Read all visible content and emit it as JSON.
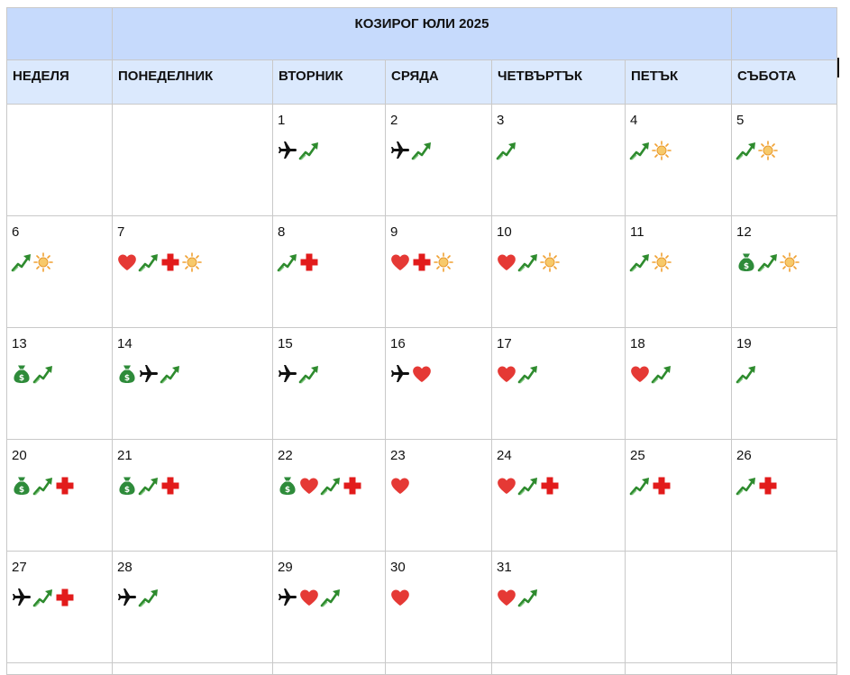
{
  "title": "КОЗИРОГ ЮЛИ 2025",
  "days_of_week": [
    "НЕДЕЛЯ",
    "ПОНЕДЕЛНИК",
    "ВТОРНИК",
    "СРЯДА",
    "ЧЕТВЪРТЪК",
    "ПЕТЪК",
    "СЪБОТА"
  ],
  "colors": {
    "title_bg": "#c6dafc",
    "header_bg": "#dbe9fd",
    "grid": "#c9c9c9"
  },
  "weeks": [
    [
      {
        "day": "",
        "icons": []
      },
      {
        "day": "",
        "icons": []
      },
      {
        "day": "1",
        "icons": [
          "airplane-icon",
          "trend-up-icon"
        ]
      },
      {
        "day": "2",
        "icons": [
          "airplane-icon",
          "trend-up-icon"
        ]
      },
      {
        "day": "3",
        "icons": [
          "trend-up-icon"
        ]
      },
      {
        "day": "4",
        "icons": [
          "trend-up-icon",
          "sun-icon"
        ]
      },
      {
        "day": "5",
        "icons": [
          "trend-up-icon",
          "sun-icon"
        ]
      }
    ],
    [
      {
        "day": "6",
        "icons": [
          "trend-up-icon",
          "sun-icon"
        ]
      },
      {
        "day": "7",
        "icons": [
          "heart-icon",
          "trend-up-icon",
          "health-cross-icon",
          "sun-icon"
        ]
      },
      {
        "day": "8",
        "icons": [
          "trend-up-icon",
          "health-cross-icon"
        ]
      },
      {
        "day": "9",
        "icons": [
          "heart-icon",
          "health-cross-icon",
          "sun-icon"
        ]
      },
      {
        "day": "10",
        "icons": [
          "heart-icon",
          "trend-up-icon",
          "sun-icon"
        ]
      },
      {
        "day": "11",
        "icons": [
          "trend-up-icon",
          "sun-icon"
        ]
      },
      {
        "day": "12",
        "icons": [
          "money-bag-icon",
          "trend-up-icon",
          "sun-icon"
        ]
      }
    ],
    [
      {
        "day": "13",
        "icons": [
          "money-bag-icon",
          "trend-up-icon"
        ]
      },
      {
        "day": "14",
        "icons": [
          "money-bag-icon",
          "airplane-icon",
          "trend-up-icon"
        ]
      },
      {
        "day": "15",
        "icons": [
          "airplane-icon",
          "trend-up-icon"
        ]
      },
      {
        "day": "16",
        "icons": [
          "airplane-icon",
          "heart-icon"
        ]
      },
      {
        "day": "17",
        "icons": [
          "heart-icon",
          "trend-up-icon"
        ]
      },
      {
        "day": "18",
        "icons": [
          "heart-icon",
          "trend-up-icon"
        ]
      },
      {
        "day": "19",
        "icons": [
          "trend-up-icon"
        ]
      }
    ],
    [
      {
        "day": "20",
        "icons": [
          "money-bag-icon",
          "trend-up-icon",
          "health-cross-icon"
        ]
      },
      {
        "day": "21",
        "icons": [
          "money-bag-icon",
          "trend-up-icon",
          "health-cross-icon"
        ]
      },
      {
        "day": "22",
        "icons": [
          "money-bag-icon",
          "heart-icon",
          "trend-up-icon",
          "health-cross-icon"
        ]
      },
      {
        "day": "23",
        "icons": [
          "heart-icon"
        ]
      },
      {
        "day": "24",
        "icons": [
          "heart-icon",
          "trend-up-icon",
          "health-cross-icon"
        ]
      },
      {
        "day": "25",
        "icons": [
          "trend-up-icon",
          "health-cross-icon"
        ]
      },
      {
        "day": "26",
        "icons": [
          "trend-up-icon",
          "health-cross-icon"
        ]
      }
    ],
    [
      {
        "day": "27",
        "icons": [
          "airplane-icon",
          "trend-up-icon",
          "health-cross-icon"
        ]
      },
      {
        "day": "28",
        "icons": [
          "airplane-icon",
          "trend-up-icon"
        ]
      },
      {
        "day": "29",
        "icons": [
          "airplane-icon",
          "heart-icon",
          "trend-up-icon"
        ]
      },
      {
        "day": "30",
        "icons": [
          "heart-icon"
        ]
      },
      {
        "day": "31",
        "icons": [
          "heart-icon",
          "trend-up-icon"
        ]
      },
      {
        "day": "",
        "icons": []
      },
      {
        "day": "",
        "icons": []
      }
    ],
    [
      {
        "day": "",
        "icons": []
      },
      {
        "day": "",
        "icons": []
      },
      {
        "day": "",
        "icons": []
      },
      {
        "day": "",
        "icons": []
      },
      {
        "day": "",
        "icons": []
      },
      {
        "day": "",
        "icons": []
      },
      {
        "day": "",
        "icons": []
      }
    ]
  ]
}
